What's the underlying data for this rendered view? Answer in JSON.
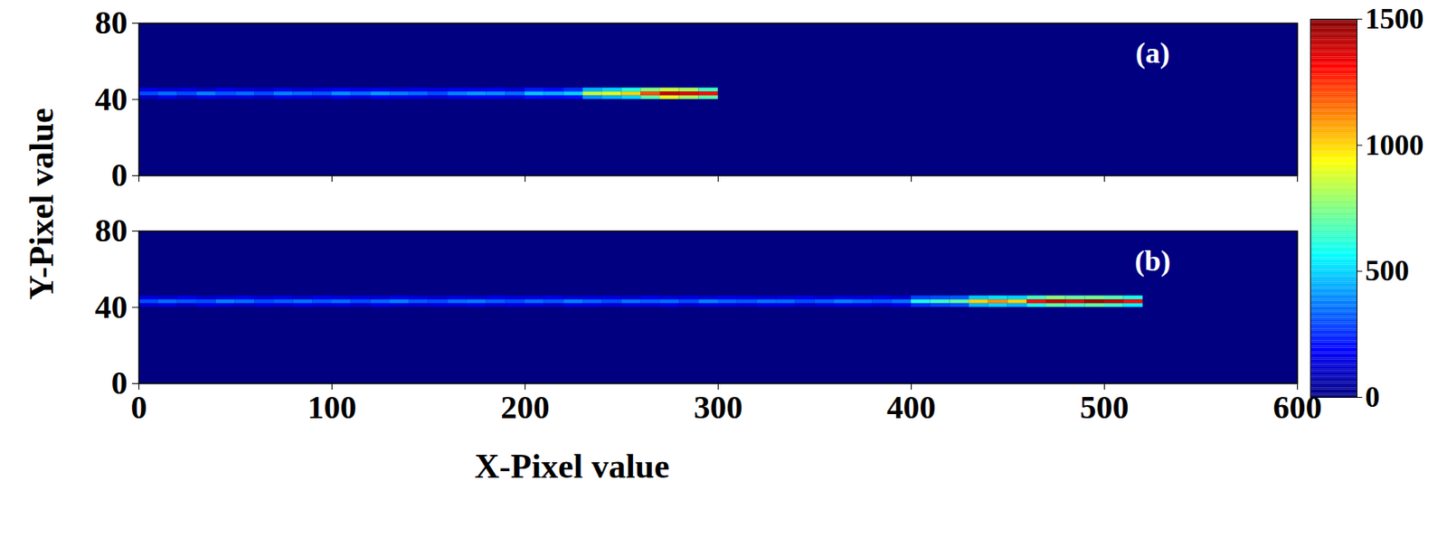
{
  "chart_data": {
    "type": "heatmap",
    "xlabel": "X-Pixel value",
    "ylabel": "Y-Pixel value",
    "panels": [
      {
        "label": "(a)",
        "tick_labels": "y",
        "xlim": [
          0,
          600
        ],
        "xticks": [
          0,
          100,
          200,
          300,
          400,
          500,
          600
        ],
        "ylim": [
          0,
          80
        ],
        "yticks": [
          0,
          40,
          80
        ],
        "x_edges": [
          0,
          10,
          20,
          30,
          40,
          50,
          60,
          70,
          80,
          90,
          100,
          110,
          120,
          130,
          140,
          150,
          160,
          170,
          180,
          190,
          200,
          210,
          220,
          230,
          240,
          250,
          260,
          270,
          280,
          290,
          300
        ],
        "y_edges": [
          40,
          42,
          44,
          46
        ],
        "z": [
          [
            100,
            150,
            100,
            150,
            120,
            130,
            100,
            150,
            140,
            120,
            160,
            130,
            170,
            150,
            140,
            120,
            150,
            170,
            160,
            140,
            200,
            180,
            200,
            400,
            450,
            500,
            700,
            900,
            800,
            700
          ],
          [
            300,
            350,
            300,
            380,
            320,
            350,
            300,
            380,
            350,
            320,
            400,
            350,
            420,
            380,
            350,
            300,
            380,
            420,
            400,
            350,
            480,
            450,
            500,
            850,
            900,
            1000,
            1200,
            1400,
            1350,
            1300
          ],
          [
            150,
            120,
            140,
            100,
            160,
            130,
            110,
            150,
            120,
            140,
            170,
            150,
            160,
            130,
            150,
            140,
            160,
            150,
            170,
            130,
            220,
            200,
            250,
            450,
            500,
            600,
            750,
            850,
            800,
            650
          ]
        ]
      },
      {
        "label": "(b)",
        "tick_labels": true,
        "xlim": [
          0,
          600
        ],
        "xticks": [
          0,
          100,
          200,
          300,
          400,
          500,
          600
        ],
        "ylim": [
          0,
          80
        ],
        "yticks": [
          0,
          40,
          80
        ],
        "x_edges": [
          0,
          10,
          20,
          30,
          40,
          50,
          60,
          70,
          80,
          90,
          100,
          110,
          120,
          130,
          140,
          150,
          160,
          170,
          180,
          190,
          200,
          210,
          220,
          230,
          240,
          250,
          260,
          270,
          280,
          290,
          300,
          310,
          320,
          330,
          340,
          350,
          360,
          370,
          380,
          390,
          400,
          410,
          420,
          430,
          440,
          450,
          460,
          470,
          480,
          490,
          500,
          510,
          520
        ],
        "y_edges": [
          40,
          42,
          44,
          46
        ],
        "z": [
          [
            120,
            140,
            100,
            150,
            130,
            110,
            140,
            120,
            150,
            130,
            140,
            110,
            150,
            130,
            120,
            140,
            130,
            150,
            120,
            140,
            130,
            110,
            150,
            140,
            120,
            140,
            130,
            150,
            110,
            140,
            130,
            120,
            150,
            140,
            110,
            130,
            150,
            140,
            120,
            150,
            250,
            280,
            300,
            450,
            500,
            450,
            600,
            700,
            650,
            700,
            650,
            550
          ],
          [
            300,
            350,
            320,
            300,
            380,
            350,
            300,
            330,
            360,
            320,
            350,
            300,
            340,
            380,
            320,
            300,
            350,
            370,
            330,
            300,
            350,
            320,
            380,
            340,
            300,
            360,
            330,
            350,
            300,
            380,
            340,
            320,
            360,
            350,
            300,
            330,
            380,
            350,
            320,
            360,
            600,
            650,
            700,
            1000,
            1100,
            1000,
            1300,
            1400,
            1350,
            1450,
            1400,
            1300
          ],
          [
            140,
            120,
            150,
            110,
            130,
            150,
            120,
            140,
            110,
            150,
            130,
            140,
            120,
            150,
            130,
            110,
            140,
            120,
            150,
            130,
            140,
            150,
            120,
            130,
            140,
            110,
            150,
            130,
            140,
            120,
            150,
            140,
            120,
            130,
            150,
            120,
            140,
            130,
            150,
            120,
            280,
            300,
            320,
            480,
            520,
            500,
            650,
            750,
            700,
            720,
            680,
            600
          ]
        ]
      }
    ],
    "colorbar": {
      "lim": [
        0,
        1500
      ],
      "ticks": [
        0,
        500,
        1000,
        1500
      ]
    }
  }
}
